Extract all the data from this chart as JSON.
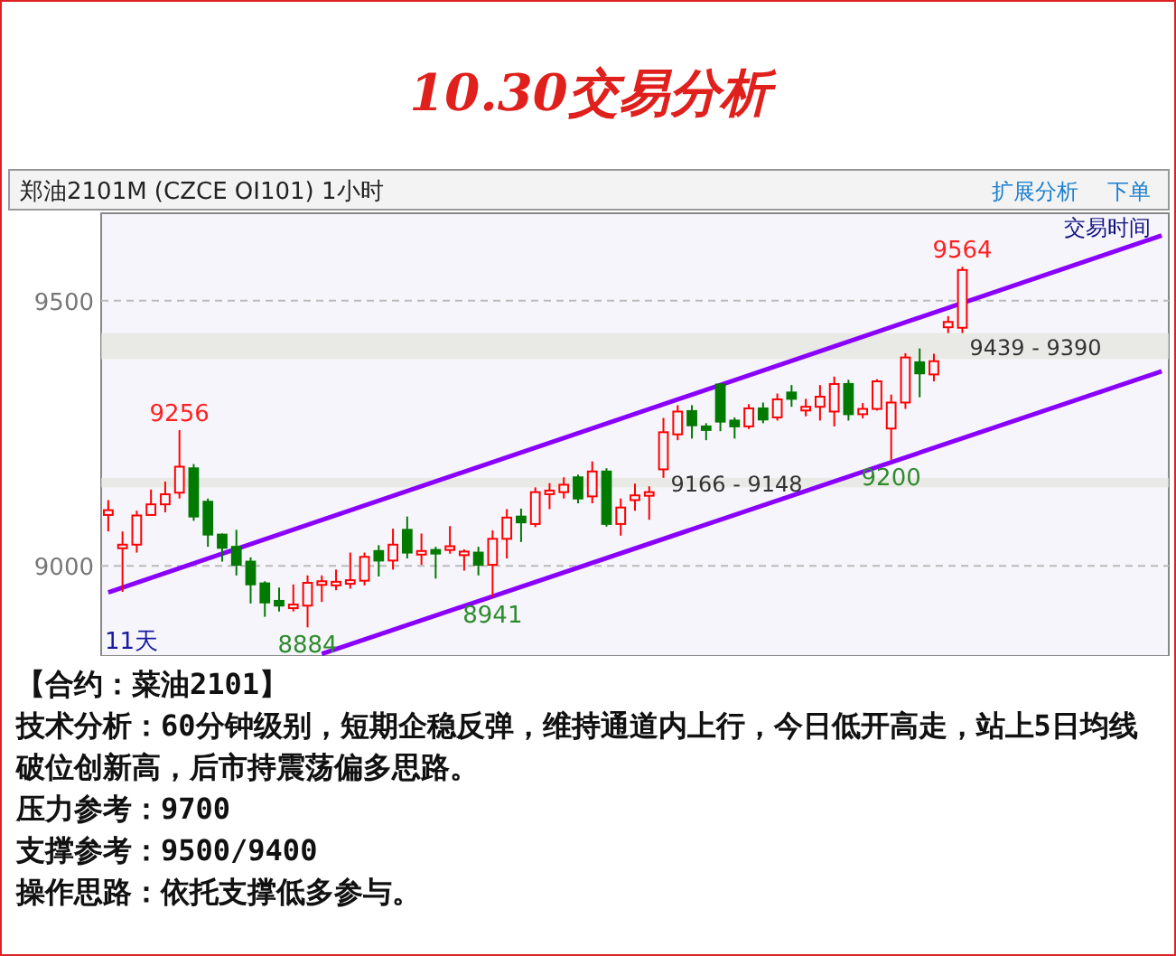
{
  "chart_data": {
    "type": "candlestick",
    "title": "10.30交易分析",
    "subtitle": "郑油2101M (CZCE OI101)  1小时",
    "categories": [
      null,
      null,
      null,
      null,
      null,
      null,
      null,
      null,
      null,
      null,
      null,
      null,
      null,
      null,
      null,
      null,
      null,
      null,
      null,
      null,
      null,
      null,
      null,
      null,
      null,
      null,
      null,
      null,
      null,
      null,
      null,
      null,
      null,
      null,
      null,
      null,
      null,
      null,
      null,
      null,
      null,
      null,
      null,
      null,
      null,
      null,
      null,
      null,
      null,
      null,
      null,
      null,
      null,
      null,
      null,
      null,
      null,
      null,
      null,
      null,
      null,
      null,
      null,
      null,
      null,
      null,
      null,
      null,
      null,
      null,
      null,
      null,
      null,
      null,
      null
    ],
    "ohlc": [
      [
        9096,
        9124,
        9065,
        9105
      ],
      [
        9038,
        9065,
        8951,
        9040
      ],
      [
        9040,
        9104,
        9025,
        9095
      ],
      [
        9096,
        9144,
        9095,
        9116
      ],
      [
        9116,
        9159,
        9101,
        9135
      ],
      [
        9138,
        9256,
        9127,
        9187
      ],
      [
        9184,
        9192,
        9085,
        9093
      ],
      [
        9121,
        9127,
        9036,
        9059
      ],
      [
        9059,
        9061,
        9008,
        9034
      ],
      [
        9036,
        9068,
        8982,
        9002
      ],
      [
        9008,
        9016,
        8929,
        8965
      ],
      [
        8967,
        8971,
        8904,
        8931
      ],
      [
        8934,
        8959,
        8914,
        8925
      ],
      [
        8923,
        8965,
        8914,
        8927
      ],
      [
        8925,
        8982,
        8884,
        8968
      ],
      [
        8968,
        8982,
        8932,
        8971
      ],
      [
        8966,
        8993,
        8954,
        8970
      ],
      [
        8968,
        9025,
        8957,
        8973
      ],
      [
        8972,
        9025,
        8963,
        9017
      ],
      [
        9028,
        9039,
        8980,
        9010
      ],
      [
        9010,
        9070,
        8993,
        9040
      ],
      [
        9068,
        9093,
        9014,
        9025
      ],
      [
        9025,
        9061,
        9002,
        9028
      ],
      [
        9030,
        9036,
        8976,
        9025
      ],
      [
        9030,
        9075,
        9023,
        9037
      ],
      [
        9024,
        9031,
        8991,
        9027
      ],
      [
        9025,
        9036,
        8982,
        9002
      ],
      [
        9002,
        9067,
        8941,
        9051
      ],
      [
        9051,
        9107,
        9014,
        9091
      ],
      [
        9093,
        9108,
        9045,
        9082
      ],
      [
        9079,
        9148,
        9073,
        9139
      ],
      [
        9140,
        9156,
        9107,
        9142
      ],
      [
        9139,
        9167,
        9127,
        9153
      ],
      [
        9167,
        9172,
        9118,
        9127
      ],
      [
        9131,
        9197,
        9118,
        9178
      ],
      [
        9178,
        9184,
        9074,
        9079
      ],
      [
        9079,
        9127,
        9057,
        9110
      ],
      [
        9124,
        9155,
        9104,
        9133
      ],
      [
        9133,
        9150,
        9087,
        9139
      ],
      [
        9182,
        9279,
        9166,
        9252
      ],
      [
        9248,
        9303,
        9237,
        9291
      ],
      [
        9292,
        9303,
        9240,
        9265
      ],
      [
        9263,
        9269,
        9237,
        9259
      ],
      [
        9342,
        9344,
        9254,
        9272
      ],
      [
        9274,
        9280,
        9240,
        9263
      ],
      [
        9263,
        9305,
        9258,
        9297
      ],
      [
        9297,
        9308,
        9269,
        9276
      ],
      [
        9280,
        9325,
        9274,
        9314
      ],
      [
        9327,
        9341,
        9300,
        9315
      ],
      [
        9293,
        9315,
        9282,
        9300
      ],
      [
        9300,
        9341,
        9274,
        9319
      ],
      [
        9291,
        9357,
        9263,
        9343
      ],
      [
        9343,
        9351,
        9274,
        9286
      ],
      [
        9286,
        9307,
        9278,
        9296
      ],
      [
        9296,
        9352,
        9293,
        9348
      ],
      [
        9259,
        9323,
        9200,
        9308
      ],
      [
        9308,
        9401,
        9296,
        9393
      ],
      [
        9384,
        9410,
        9318,
        9363
      ],
      [
        9361,
        9400,
        9348,
        9386
      ],
      [
        9450,
        9471,
        9439,
        9460
      ],
      [
        9449,
        9564,
        9439,
        9558
      ],
      null,
      null,
      null,
      null,
      null,
      null,
      null,
      null,
      null,
      null,
      null,
      null,
      null,
      null
    ],
    "series": [
      {
        "type": "line",
        "values": [
          8950,
          null,
          null,
          null,
          null,
          null,
          null,
          null,
          null,
          null,
          null,
          null,
          null,
          null,
          null,
          null,
          null,
          null,
          null,
          null,
          null,
          null,
          null,
          null,
          null,
          null,
          null,
          null,
          null,
          null,
          null,
          null,
          null,
          null,
          null,
          null,
          null,
          null,
          null,
          null,
          null,
          null,
          null,
          null,
          null,
          null,
          null,
          null,
          null,
          null,
          null,
          null,
          null,
          null,
          null,
          null,
          null,
          null,
          null,
          null,
          null,
          null,
          null,
          null,
          null,
          null,
          null,
          null,
          null,
          null,
          null,
          null,
          null,
          null,
          9623
        ],
        "color": "#8a00ff"
      },
      {
        "type": "line",
        "values": [
          null,
          null,
          null,
          null,
          null,
          null,
          null,
          null,
          null,
          null,
          null,
          null,
          null,
          null,
          null,
          8834,
          null,
          null,
          null,
          null,
          null,
          null,
          null,
          null,
          null,
          null,
          null,
          null,
          null,
          null,
          null,
          null,
          null,
          null,
          null,
          null,
          null,
          null,
          null,
          null,
          null,
          null,
          null,
          null,
          null,
          null,
          null,
          null,
          null,
          null,
          null,
          null,
          null,
          null,
          null,
          null,
          null,
          null,
          null,
          null,
          null,
          null,
          null,
          null,
          null,
          null,
          null,
          null,
          null,
          null,
          null,
          null,
          null,
          null,
          9367
        ],
        "color": "#8a00ff"
      }
    ],
    "ylim": [
      8830,
      9665
    ],
    "yticks": [
      9000,
      9500
    ],
    "grid": "y",
    "tick_labels": "y",
    "bands": [
      {
        "axis": "y",
        "from": 9148,
        "to": 9166,
        "label": "9166 - 9148",
        "color": "#e4e4dc"
      },
      {
        "axis": "y",
        "from": 9390,
        "to": 9439,
        "label": "9439 - 9390",
        "color": "#e4e4dc"
      }
    ],
    "annotations": [
      {
        "text": "9256",
        "y": 9256
      },
      {
        "text": "8884",
        "y": 8884
      },
      {
        "text": "8941",
        "y": 8941
      },
      {
        "text": "9200",
        "y": 9200
      },
      {
        "text": "9564",
        "y": 9564
      },
      "11天",
      "扩展分析",
      "下单",
      "交易时间",
      "【合约：菜油2101】",
      "技术分析：60分钟级别，短期企稳反弹，维持通道内上行，今日低开高走，站上5日均线破位创新高，后市持震荡偏多思路。",
      "压力参考：9700",
      "支撑参考：9500/9400",
      "操作思路：依托支撑低多参与。"
    ]
  }
}
